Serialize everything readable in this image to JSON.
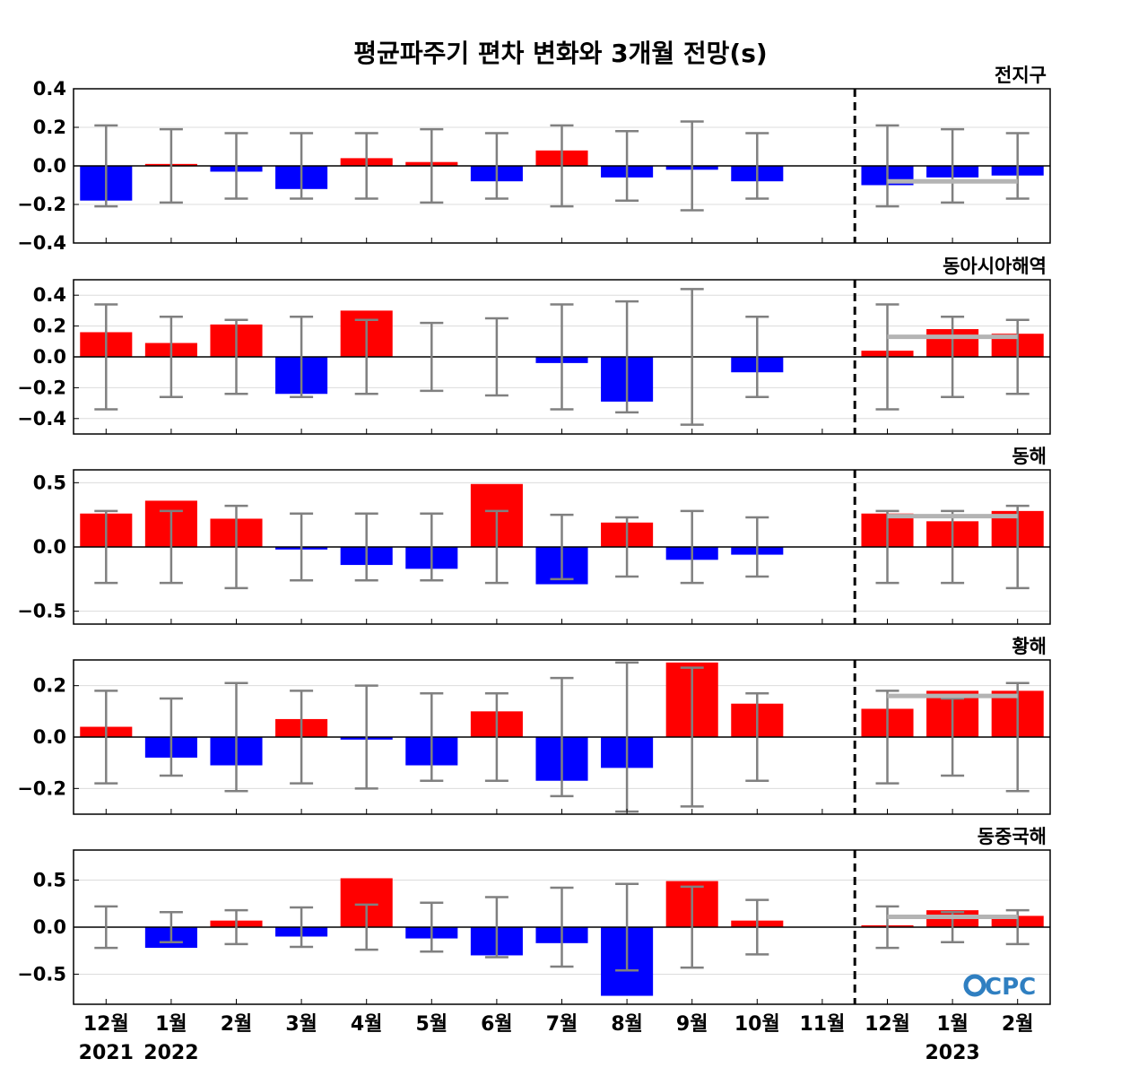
{
  "chart_data": {
    "type": "bar",
    "title": "평균파주기 편차 변화와 3개월 전망(s)",
    "categories": [
      "12월",
      "1월",
      "2월",
      "3월",
      "4월",
      "5월",
      "6월",
      "7월",
      "8월",
      "9월",
      "10월",
      "11월",
      "12월",
      "1월",
      "2월"
    ],
    "year_labels": [
      {
        "index": 0,
        "label": "2021"
      },
      {
        "index": 1,
        "label": "2022"
      },
      {
        "index": 13,
        "label": "2023"
      }
    ],
    "colors": {
      "positive": "#ff0000",
      "negative": "#0000ff",
      "error_bar": "#808080",
      "forecast_line": "#b4b4b4",
      "logo": "#2f7fc1"
    },
    "logo_text": "CPC",
    "panels": [
      {
        "name": "전지구",
        "ylim": [
          -0.4,
          0.4
        ],
        "yticks": [
          0.4,
          0.2,
          0.0,
          -0.2,
          -0.4
        ],
        "ytick_labels": [
          "0.4",
          "0.2",
          "0.0",
          "−0.2",
          "−0.4"
        ],
        "values": [
          -0.18,
          0.01,
          -0.03,
          -0.12,
          0.04,
          0.02,
          -0.08,
          0.08,
          -0.06,
          -0.02,
          -0.08,
          0.0,
          -0.1,
          -0.06,
          -0.05
        ],
        "error": [
          0.21,
          0.19,
          0.17,
          0.17,
          0.17,
          0.19,
          0.17,
          0.21,
          0.18,
          0.23,
          0.17,
          null,
          0.21,
          0.19,
          0.17
        ],
        "forecast_mean": -0.08
      },
      {
        "name": "동아시아해역",
        "ylim": [
          -0.5,
          0.5
        ],
        "yticks": [
          0.4,
          0.2,
          0.0,
          -0.2,
          -0.4
        ],
        "ytick_labels": [
          "0.4",
          "0.2",
          "0.0",
          "−0.2",
          "−0.4"
        ],
        "values": [
          0.16,
          0.09,
          0.21,
          -0.24,
          0.3,
          0.0,
          0.0,
          -0.04,
          -0.29,
          0.0,
          -0.1,
          0.0,
          0.04,
          0.18,
          0.15
        ],
        "error": [
          0.34,
          0.26,
          0.24,
          0.26,
          0.24,
          0.22,
          0.25,
          0.34,
          0.36,
          0.44,
          0.26,
          null,
          0.34,
          0.26,
          0.24
        ],
        "forecast_mean": 0.13
      },
      {
        "name": "동해",
        "ylim": [
          -0.6,
          0.6
        ],
        "yticks": [
          0.5,
          0.0,
          -0.5
        ],
        "ytick_labels": [
          "0.5",
          "0.0",
          "−0.5"
        ],
        "values": [
          0.26,
          0.36,
          0.22,
          -0.02,
          -0.14,
          -0.17,
          0.49,
          -0.29,
          0.19,
          -0.1,
          -0.06,
          0.0,
          0.26,
          0.2,
          0.28
        ],
        "error": [
          0.28,
          0.28,
          0.32,
          0.26,
          0.26,
          0.26,
          0.28,
          0.25,
          0.23,
          0.28,
          0.23,
          null,
          0.28,
          0.28,
          0.32
        ],
        "forecast_mean": 0.24
      },
      {
        "name": "황해",
        "ylim": [
          -0.3,
          0.3
        ],
        "yticks": [
          0.2,
          0.0,
          -0.2
        ],
        "ytick_labels": [
          "0.2",
          "0.0",
          "−0.2"
        ],
        "values": [
          0.04,
          -0.08,
          -0.11,
          0.07,
          -0.01,
          -0.11,
          0.1,
          -0.17,
          -0.12,
          0.29,
          0.13,
          0.0,
          0.11,
          0.18,
          0.18
        ],
        "error": [
          0.18,
          0.15,
          0.21,
          0.18,
          0.2,
          0.17,
          0.17,
          0.23,
          0.29,
          0.27,
          0.17,
          null,
          0.18,
          0.15,
          0.21
        ],
        "forecast_mean": 0.16
      },
      {
        "name": "동중국해",
        "ylim": [
          -0.82,
          0.82
        ],
        "yticks": [
          0.5,
          0.0,
          -0.5
        ],
        "ytick_labels": [
          "0.5",
          "0.0",
          "−0.5"
        ],
        "values": [
          0.0,
          -0.22,
          0.07,
          -0.1,
          0.52,
          -0.12,
          -0.3,
          -0.17,
          -0.73,
          0.49,
          0.07,
          0.0,
          0.02,
          0.18,
          0.12
        ],
        "error": [
          0.22,
          0.16,
          0.18,
          0.21,
          0.24,
          0.26,
          0.32,
          0.42,
          0.46,
          0.43,
          0.29,
          null,
          0.22,
          0.16,
          0.18
        ],
        "forecast_mean": 0.11
      }
    ]
  }
}
